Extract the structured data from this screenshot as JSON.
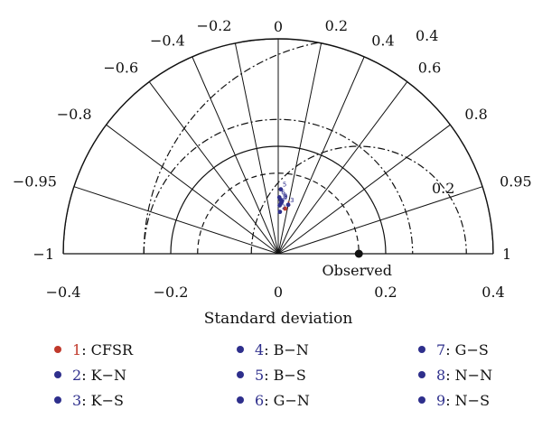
{
  "chart_data": {
    "type": "taylor",
    "xlabel": "Standard deviation",
    "x_ticks": [
      "−0.4",
      "−0.2",
      "0",
      "0.2",
      "0.4"
    ],
    "correlation_ticks": [
      {
        "value": -1,
        "label": "−1"
      },
      {
        "value": -0.95,
        "label": "−0.95"
      },
      {
        "value": -0.8,
        "label": "−0.8"
      },
      {
        "value": -0.6,
        "label": "−0.6"
      },
      {
        "value": -0.4,
        "label": "−0.4"
      },
      {
        "value": -0.2,
        "label": "−0.2"
      },
      {
        "value": 0,
        "label": "0"
      },
      {
        "value": 0.2,
        "label": "0.2"
      },
      {
        "value": 0.4,
        "label": "0.4"
      },
      {
        "value": 0.6,
        "label": "0.6"
      },
      {
        "value": 0.8,
        "label": "0.8"
      },
      {
        "value": 0.95,
        "label": "0.95"
      },
      {
        "value": 1,
        "label": "1"
      }
    ],
    "std_range": [
      0,
      0.4
    ],
    "std_circles": [
      0.2,
      0.4
    ],
    "dashed_std_circle": 0.15,
    "dashdot_std_circle": 0.25,
    "observed": {
      "std": 0.15,
      "label": "Observed"
    },
    "rmsd_circles": [
      {
        "value": 0.2,
        "label": "0.2"
      },
      {
        "value": 0.4,
        "label": "0.4"
      }
    ],
    "rmsd_label_y": "0.4",
    "points": [
      {
        "id": "1",
        "name": "CFSR",
        "corr": 0.15,
        "std": 0.085,
        "color": "#c0392b"
      },
      {
        "id": "2",
        "name": "K−N",
        "corr": 0.04,
        "std": 0.078,
        "color": "#2e2f8c"
      },
      {
        "id": "3",
        "name": "K−S",
        "corr": 0.2,
        "std": 0.093,
        "color": "#2e2f8c"
      },
      {
        "id": "4",
        "name": "B−N",
        "corr": 0.06,
        "std": 0.095,
        "color": "#2e2f8c"
      },
      {
        "id": "5",
        "name": "B−S",
        "corr": 0.04,
        "std": 0.12,
        "color": "#2e2f8c"
      },
      {
        "id": "6",
        "name": "G−N",
        "corr": 0.02,
        "std": 0.105,
        "color": "#2e2f8c"
      },
      {
        "id": "7",
        "name": "G−S",
        "corr": 0.03,
        "std": 0.09,
        "color": "#2e2f8c"
      },
      {
        "id": "8",
        "name": "N−N",
        "corr": 0.05,
        "std": 0.1,
        "color": "#2e2f8c"
      },
      {
        "id": "9",
        "name": "N−S",
        "corr": 0.07,
        "std": 0.098,
        "color": "#2e2f8c"
      }
    ]
  },
  "legend": [
    {
      "num": "1",
      "text": ": CFSR",
      "color": "#c0392b"
    },
    {
      "num": "2",
      "text": ": K−N",
      "color": "#2e2f8c"
    },
    {
      "num": "3",
      "text": ": K−S",
      "color": "#2e2f8c"
    },
    {
      "num": "4",
      "text": ": B−N",
      "color": "#2e2f8c"
    },
    {
      "num": "5",
      "text": ": B−S",
      "color": "#2e2f8c"
    },
    {
      "num": "6",
      "text": ": G−N",
      "color": "#2e2f8c"
    },
    {
      "num": "7",
      "text": ": G−S",
      "color": "#2e2f8c"
    },
    {
      "num": "8",
      "text": ": N−N",
      "color": "#2e2f8c"
    },
    {
      "num": "9",
      "text": ": N−S",
      "color": "#2e2f8c"
    }
  ]
}
